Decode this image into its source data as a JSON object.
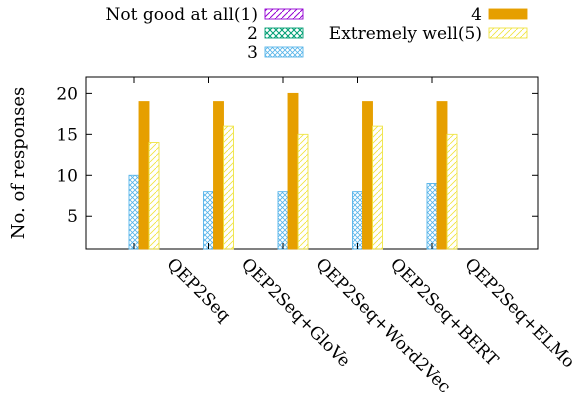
{
  "chart_data": {
    "type": "bar",
    "ylabel": "No. of responses",
    "xlabel": "",
    "title": "",
    "ylim": [
      1,
      22
    ],
    "yticks": [
      5,
      10,
      15,
      20
    ],
    "grid": false,
    "legend_placement": "top",
    "categories": [
      "QEP2Seq",
      "QEP2Seq+GloVe",
      "QEP2Seq+Word2Vec",
      "QEP2Seq+BERT",
      "QEP2Seq+ELMo"
    ],
    "series": [
      {
        "name": "Not good at all(1)",
        "color": "#9400d3",
        "pattern": "hatch-single",
        "values": [
          0,
          0,
          0,
          0,
          0
        ]
      },
      {
        "name": "2",
        "color": "#009e73",
        "pattern": "crosshatch",
        "values": [
          0,
          0,
          0,
          0,
          0
        ]
      },
      {
        "name": "3",
        "color": "#56b4e9",
        "pattern": "crosshatch",
        "values": [
          10,
          8,
          8,
          8,
          9
        ]
      },
      {
        "name": "4",
        "color": "#e69f00",
        "pattern": "solid",
        "values": [
          19,
          19,
          20,
          19,
          19
        ]
      },
      {
        "name": "Extremely well(5)",
        "color": "#f0e442",
        "pattern": "hatch-single",
        "values": [
          14,
          16,
          15,
          16,
          15
        ]
      }
    ]
  }
}
